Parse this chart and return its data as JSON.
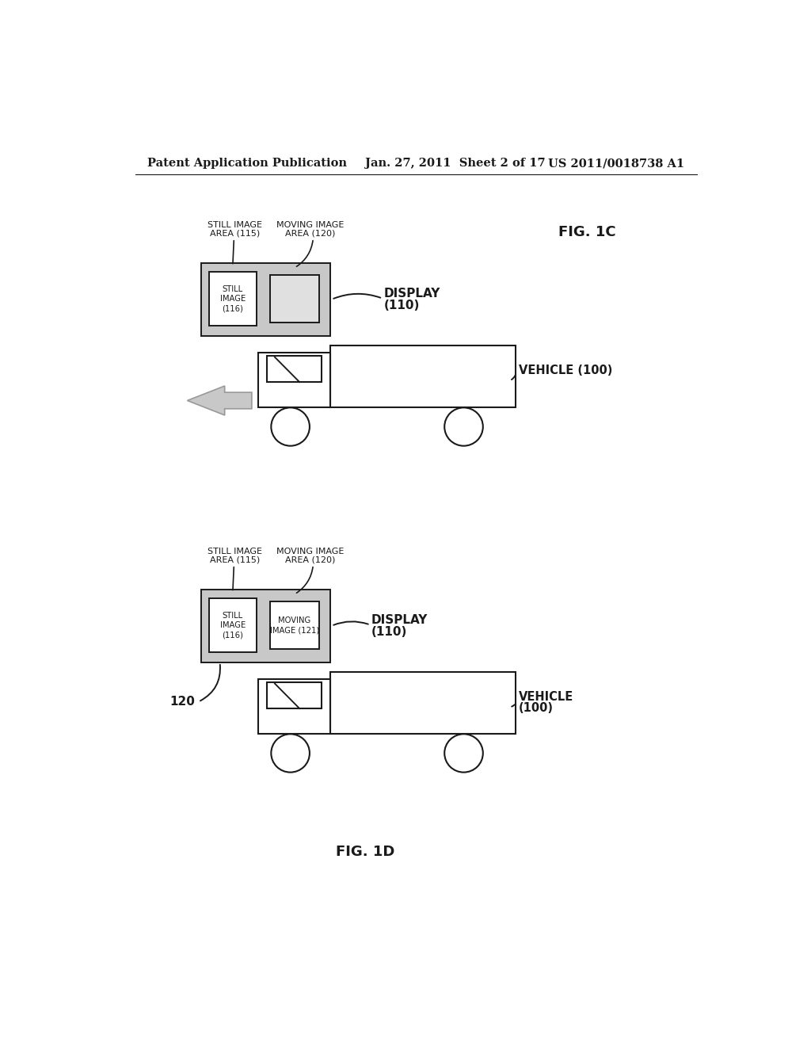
{
  "bg_color": "#ffffff",
  "header_left": "Patent Application Publication",
  "header_mid": "Jan. 27, 2011  Sheet 2 of 17",
  "header_right": "US 2011/0018738 A1",
  "fig1c_label": "FIG. 1C",
  "fig1d_label": "FIG. 1D",
  "display_label_1": "DISPLAY",
  "display_label_2": "(110)",
  "vehicle_label_1": "VEHICLE (100)",
  "still_image_area_1": "STILL IMAGE",
  "still_image_area_2": "AREA (115)",
  "moving_image_area_1": "MOVING IMAGE",
  "moving_image_area_2": "AREA (120)",
  "still_image_text": "STILL\nIMAGE\n(116)",
  "moving_image_text": "MOVING\nIMAGE (121)",
  "label_120": "120",
  "disp_gray": "#c8c8c8",
  "disp_light": "#e0e0e0",
  "arrow_gray": "#c8c8c8",
  "arrow_edge": "#999999",
  "black": "#1a1a1a",
  "white": "#ffffff"
}
